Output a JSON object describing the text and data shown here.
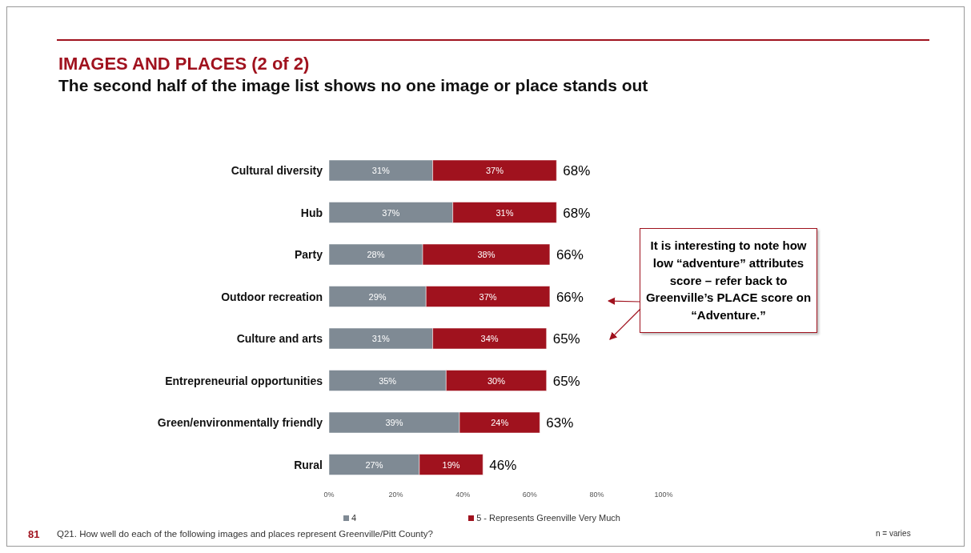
{
  "chart_data": {
    "type": "bar",
    "orientation": "horizontal",
    "stacked": true,
    "title": "IMAGES AND PLACES (2 of 2)",
    "subtitle": "The second half of the image list shows no one image or place stands out",
    "categories": [
      "Cultural diversity",
      "Hub",
      "Party",
      "Outdoor recreation",
      "Culture and arts",
      "Entrepreneurial opportunities",
      "Green/environmentally friendly",
      "Rural"
    ],
    "series": [
      {
        "name": "4",
        "color": "#7f8a94",
        "values": [
          31,
          37,
          28,
          29,
          31,
          35,
          39,
          27
        ],
        "value_labels": [
          "31%",
          "37%",
          "28%",
          "29%",
          "31%",
          "35%",
          "39%",
          "27%"
        ]
      },
      {
        "name": "5 - Represents Greenville Very Much",
        "color": "#a0121e",
        "values": [
          37,
          31,
          38,
          37,
          34,
          30,
          24,
          19
        ],
        "value_labels": [
          "37%",
          "31%",
          "38%",
          "37%",
          "34%",
          "30%",
          "24%",
          "19%"
        ]
      }
    ],
    "totals": [
      "68%",
      "68%",
      "66%",
      "66%",
      "65%",
      "65%",
      "63%",
      "46%"
    ],
    "xlim": [
      0,
      100
    ],
    "xticks": [
      {
        "value": 0,
        "label": "0%"
      },
      {
        "value": 20,
        "label": "20%"
      },
      {
        "value": 40,
        "label": "40%"
      },
      {
        "value": 60,
        "label": "60%"
      },
      {
        "value": 80,
        "label": "80%"
      },
      {
        "value": 100,
        "label": "100%"
      }
    ],
    "grid": false,
    "legend": "bottom",
    "annotations": [
      "It is interesting to note how low “adventure” attributes score – refer back to Greenville’s PLACE score on “Adventure.”",
      "81",
      "Q21. How well do each of the following images and places represent Greenville/Pitt County?",
      "n = varies"
    ]
  }
}
